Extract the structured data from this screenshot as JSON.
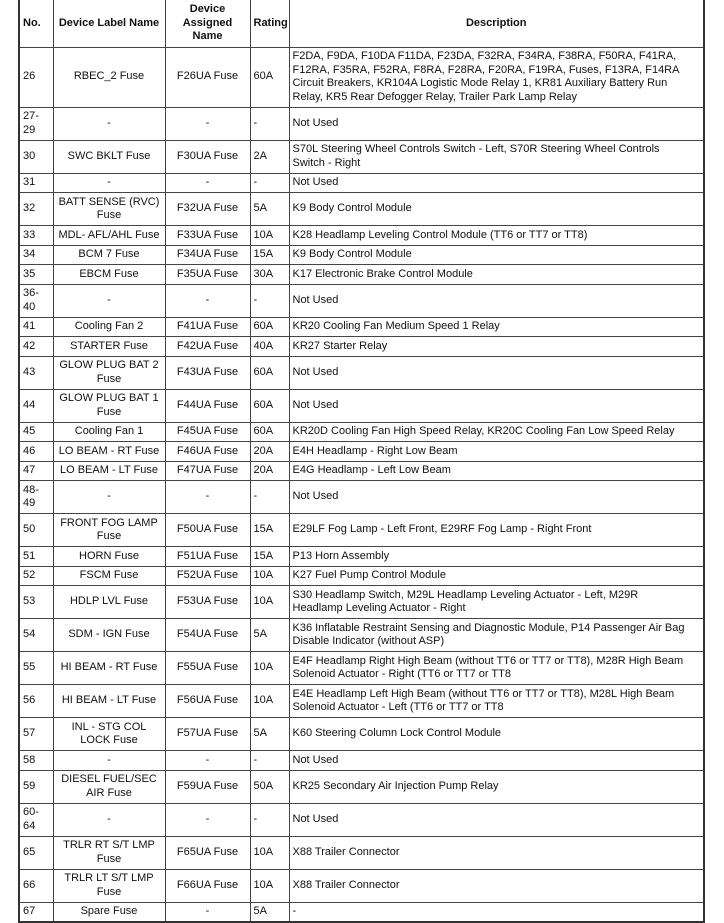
{
  "headers": {
    "no": "No.",
    "label": "Device Label Name",
    "assigned": "Device\nAssigned\nName",
    "rating": "Rating",
    "description": "Description"
  },
  "rows": [
    {
      "no": "26",
      "label": "RBEC_2 Fuse",
      "assigned": "F26UA Fuse",
      "rating": "60A",
      "description": "F2DA, F9DA, F10DA F11DA, F23DA, F32RA, F34RA, F38RA, F50RA, F41RA,\nF12RA, F35RA, F52RA, F8RA, F28RA, F20RA, F19RA, Fuses, F13RA, F14RA\nCircuit Breakers, KR104A Logistic Mode Relay 1, KR81 Auxiliary Battery Run\nRelay, KR5 Rear Defogger Relay, Trailer Park Lamp Relay"
    },
    {
      "no": "27-29",
      "label": "-",
      "assigned": "-",
      "rating": "-",
      "description": "Not Used"
    },
    {
      "no": "30",
      "label": "SWC BKLT Fuse",
      "assigned": "F30UA Fuse",
      "rating": "2A",
      "description": "S70L Steering Wheel Controls Switch - Left, S70R Steering Wheel Controls\nSwitch - Right"
    },
    {
      "no": "31",
      "label": "-",
      "assigned": "-",
      "rating": "-",
      "description": "Not Used"
    },
    {
      "no": "32",
      "label": "BATT SENSE (RVC)\nFuse",
      "assigned": "F32UA Fuse",
      "rating": "5A",
      "description": "K9 Body Control Module"
    },
    {
      "no": "33",
      "label": "MDL- AFL/AHL Fuse",
      "assigned": "F33UA Fuse",
      "rating": "10A",
      "description": "K28 Headlamp Leveling Control Module (TT6 or TT7 or TT8)"
    },
    {
      "no": "34",
      "label": "BCM 7 Fuse",
      "assigned": "F34UA Fuse",
      "rating": "15A",
      "description": "K9 Body Control Module"
    },
    {
      "no": "35",
      "label": "EBCM Fuse",
      "assigned": "F35UA Fuse",
      "rating": "30A",
      "description": "K17 Electronic Brake Control Module"
    },
    {
      "no": "36-40",
      "label": "-",
      "assigned": "-",
      "rating": "-",
      "description": "Not Used"
    },
    {
      "no": "41",
      "label": "Cooling Fan 2",
      "assigned": "F41UA Fuse",
      "rating": "60A",
      "description": "KR20 Cooling Fan Medium Speed 1 Relay"
    },
    {
      "no": "42",
      "label": "STARTER Fuse",
      "assigned": "F42UA Fuse",
      "rating": "40A",
      "description": "KR27 Starter Relay"
    },
    {
      "no": "43",
      "label": "GLOW PLUG BAT 2\nFuse",
      "assigned": "F43UA Fuse",
      "rating": "60A",
      "description": "Not Used"
    },
    {
      "no": "44",
      "label": "GLOW PLUG BAT 1\nFuse",
      "assigned": "F44UA Fuse",
      "rating": "60A",
      "description": "Not Used"
    },
    {
      "no": "45",
      "label": "Cooling Fan 1",
      "assigned": "F45UA Fuse",
      "rating": "60A",
      "description": "KR20D Cooling Fan High Speed Relay, KR20C Cooling Fan Low Speed Relay"
    },
    {
      "no": "46",
      "label": "LO BEAM - RT Fuse",
      "assigned": "F46UA Fuse",
      "rating": "20A",
      "description": "E4H Headlamp - Right Low Beam"
    },
    {
      "no": "47",
      "label": "LO BEAM - LT Fuse",
      "assigned": "F47UA Fuse",
      "rating": "20A",
      "description": "E4G Headlamp - Left Low Beam"
    },
    {
      "no": "48-49",
      "label": "-",
      "assigned": "-",
      "rating": "-",
      "description": "Not Used"
    },
    {
      "no": "50",
      "label": "FRONT FOG LAMP\nFuse",
      "assigned": "F50UA Fuse",
      "rating": "15A",
      "description": "E29LF Fog Lamp - Left Front, E29RF Fog Lamp - Right Front"
    },
    {
      "no": "51",
      "label": "HORN Fuse",
      "assigned": "F51UA Fuse",
      "rating": "15A",
      "description": "P13 Horn Assembly"
    },
    {
      "no": "52",
      "label": "FSCM Fuse",
      "assigned": "F52UA Fuse",
      "rating": "10A",
      "description": "K27 Fuel Pump Control Module"
    },
    {
      "no": "53",
      "label": "HDLP LVL Fuse",
      "assigned": "F53UA Fuse",
      "rating": "10A",
      "description": "S30 Headlamp Switch, M29L Headlamp Leveling Actuator - Left, M29R\nHeadlamp Leveling Actuator - Right"
    },
    {
      "no": "54",
      "label": "SDM - IGN Fuse",
      "assigned": "F54UA Fuse",
      "rating": "5A",
      "description": "K36 Inflatable Restraint Sensing and Diagnostic Module, P14 Passenger Air Bag\nDisable Indicator (without ASP)"
    },
    {
      "no": "55",
      "label": "HI BEAM - RT Fuse",
      "assigned": "F55UA Fuse",
      "rating": "10A",
      "description": "E4F Headlamp Right High Beam (without TT6 or TT7 or TT8), M28R High Beam\nSolenoid Actuator - Right (TT6 or TT7 or TT8"
    },
    {
      "no": "56",
      "label": "HI BEAM - LT Fuse",
      "assigned": "F56UA Fuse",
      "rating": "10A",
      "description": "E4E Headlamp Left High Beam (without TT6 or TT7 or TT8), M28L High Beam\nSolenoid Actuator - Left (TT6 or TT7 or TT8"
    },
    {
      "no": "57",
      "label": "INL - STG COL\nLOCK Fuse",
      "assigned": "F57UA Fuse",
      "rating": "5A",
      "description": "K60 Steering Column Lock Control Module"
    },
    {
      "no": "58",
      "label": "-",
      "assigned": "-",
      "rating": "-",
      "description": "Not Used"
    },
    {
      "no": "59",
      "label": "DIESEL FUEL/SEC\nAIR Fuse",
      "assigned": "F59UA Fuse",
      "rating": "50A",
      "description": "KR25 Secondary Air Injection Pump Relay"
    },
    {
      "no": "60-64",
      "label": "-",
      "assigned": "-",
      "rating": "-",
      "description": "Not Used"
    },
    {
      "no": "65",
      "label": "TRLR RT S/T LMP\nFuse",
      "assigned": "F65UA Fuse",
      "rating": "10A",
      "description": "X88 Trailer Connector"
    },
    {
      "no": "66",
      "label": "TRLR LT S/T LMP\nFuse",
      "assigned": "F66UA Fuse",
      "rating": "10A",
      "description": "X88 Trailer Connector"
    },
    {
      "no": "67",
      "label": "Spare Fuse",
      "assigned": "-",
      "rating": "5A",
      "description": "-"
    }
  ]
}
